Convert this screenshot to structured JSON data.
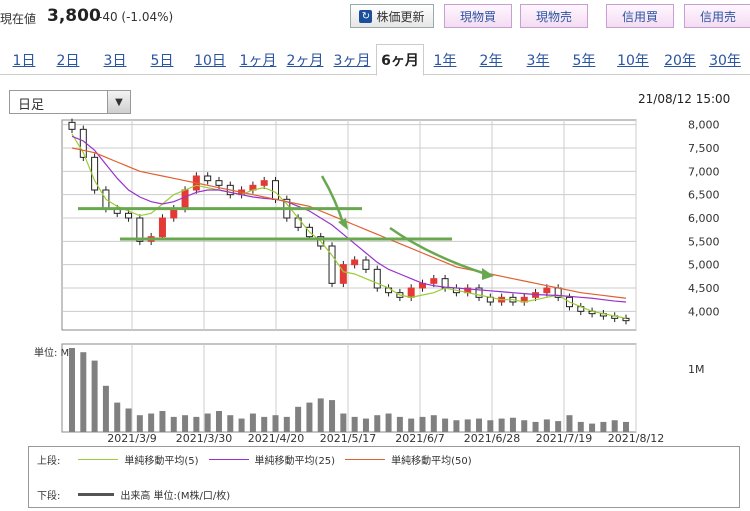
{
  "header": {
    "price_label": "現在値",
    "price": "3,800",
    "change": "-40 (-1.04%)",
    "refresh_label": "株価更新",
    "trade_buttons": [
      "現物買",
      "現物売",
      "信用買",
      "信用売"
    ]
  },
  "tabs": [
    "1日",
    "2日",
    "3日",
    "5日",
    "10日",
    "1ヶ月",
    "2ヶ月",
    "3ヶ月",
    "6ヶ月",
    "1年",
    "2年",
    "3年",
    "5年",
    "10年",
    "20年",
    "30年"
  ],
  "active_tab": "6ヶ月",
  "period_select": "日足",
  "timestamp": "21/08/12 15:00",
  "colors": {
    "up": "#e53935",
    "ma5": "#9acd32",
    "ma25": "#9932cc",
    "ma50": "#e06030",
    "volume": "#808080",
    "annotation": "#6aa84f"
  },
  "chart_data": {
    "type": "candlestick",
    "ylim": [
      3600,
      8100
    ],
    "yticks": [
      "8,000",
      "7,500",
      "7,000",
      "6,500",
      "6,000",
      "5,500",
      "5,000",
      "4,500",
      "4,000"
    ],
    "xticks": [
      "2021/3/9",
      "2021/3/30",
      "2021/4/20",
      "2021/5/17",
      "2021/6/7",
      "2021/6/28",
      "2021/7/19",
      "2021/8/12"
    ],
    "volume_unit_label": "単位: M",
    "volume_tick": "1M",
    "ma_series": [
      {
        "name": "単純移動平均(5)",
        "values": [
          7800,
          7400,
          6800,
          6400,
          6250,
          6150,
          6050,
          6100,
          6300,
          6500,
          6600,
          6700,
          6650,
          6600,
          6550,
          6500,
          6600,
          6650,
          6550,
          6300,
          6000,
          5700,
          5500,
          5200,
          4850,
          4800,
          4700,
          4600,
          4500,
          4350,
          4300,
          4350,
          4400,
          4500,
          4450,
          4400,
          4350,
          4300,
          4250,
          4250,
          4200,
          4250,
          4300,
          4350,
          4200,
          4100,
          4000,
          3950,
          3900,
          3850
        ]
      },
      {
        "name": "単純移動平均(25)",
        "values": [
          7750,
          7650,
          7450,
          7150,
          6850,
          6600,
          6450,
          6350,
          6300,
          6350,
          6450,
          6550,
          6600,
          6600,
          6550,
          6500,
          6450,
          6420,
          6400,
          6350,
          6250,
          6150,
          6000,
          5850,
          5650,
          5450,
          5250,
          5050,
          4900,
          4800,
          4700,
          4600,
          4550,
          4520,
          4500,
          4480,
          4460,
          4440,
          4420,
          4400,
          4380,
          4360,
          4350,
          4340,
          4320,
          4300,
          4280,
          4250,
          4220,
          4200
        ]
      },
      {
        "name": "単純移動平均(50)",
        "values": [
          7500,
          7450,
          7400,
          7300,
          7200,
          7100,
          7000,
          6950,
          6900,
          6850,
          6800,
          6750,
          6700,
          6650,
          6600,
          6550,
          6500,
          6450,
          6400,
          6350,
          6300,
          6250,
          6150,
          6050,
          5950,
          5850,
          5750,
          5650,
          5550,
          5450,
          5350,
          5250,
          5150,
          5050,
          4950,
          4900,
          4850,
          4800,
          4750,
          4700,
          4650,
          4600,
          4550,
          4500,
          4450,
          4400,
          4370,
          4340,
          4310,
          4280
        ]
      }
    ],
    "closes": [
      7900,
      7300,
      6600,
      6200,
      6100,
      6000,
      5500,
      5600,
      6000,
      6200,
      6600,
      6900,
      6800,
      6700,
      6500,
      6600,
      6700,
      6800,
      6400,
      6000,
      5800,
      5600,
      5400,
      4600,
      5000,
      5100,
      4900,
      4500,
      4400,
      4300,
      4500,
      4600,
      4700,
      4500,
      4400,
      4500,
      4300,
      4200,
      4300,
      4200,
      4300,
      4400,
      4500,
      4300,
      4100,
      4000,
      3950,
      3900,
      3850,
      3800
    ],
    "volumes": [
      1.0,
      0.95,
      0.85,
      0.55,
      0.35,
      0.28,
      0.2,
      0.22,
      0.25,
      0.18,
      0.2,
      0.18,
      0.22,
      0.25,
      0.2,
      0.16,
      0.22,
      0.18,
      0.2,
      0.18,
      0.3,
      0.35,
      0.4,
      0.38,
      0.22,
      0.18,
      0.16,
      0.2,
      0.22,
      0.18,
      0.16,
      0.18,
      0.2,
      0.16,
      0.14,
      0.15,
      0.16,
      0.14,
      0.16,
      0.17,
      0.14,
      0.12,
      0.15,
      0.13,
      0.2,
      0.12,
      0.1,
      0.12,
      0.14,
      0.12
    ],
    "legend_upper_label": "上段:",
    "legend_lower_label": "下段:",
    "legend_volume": "出来高 単位:(M株/口/枚)"
  }
}
